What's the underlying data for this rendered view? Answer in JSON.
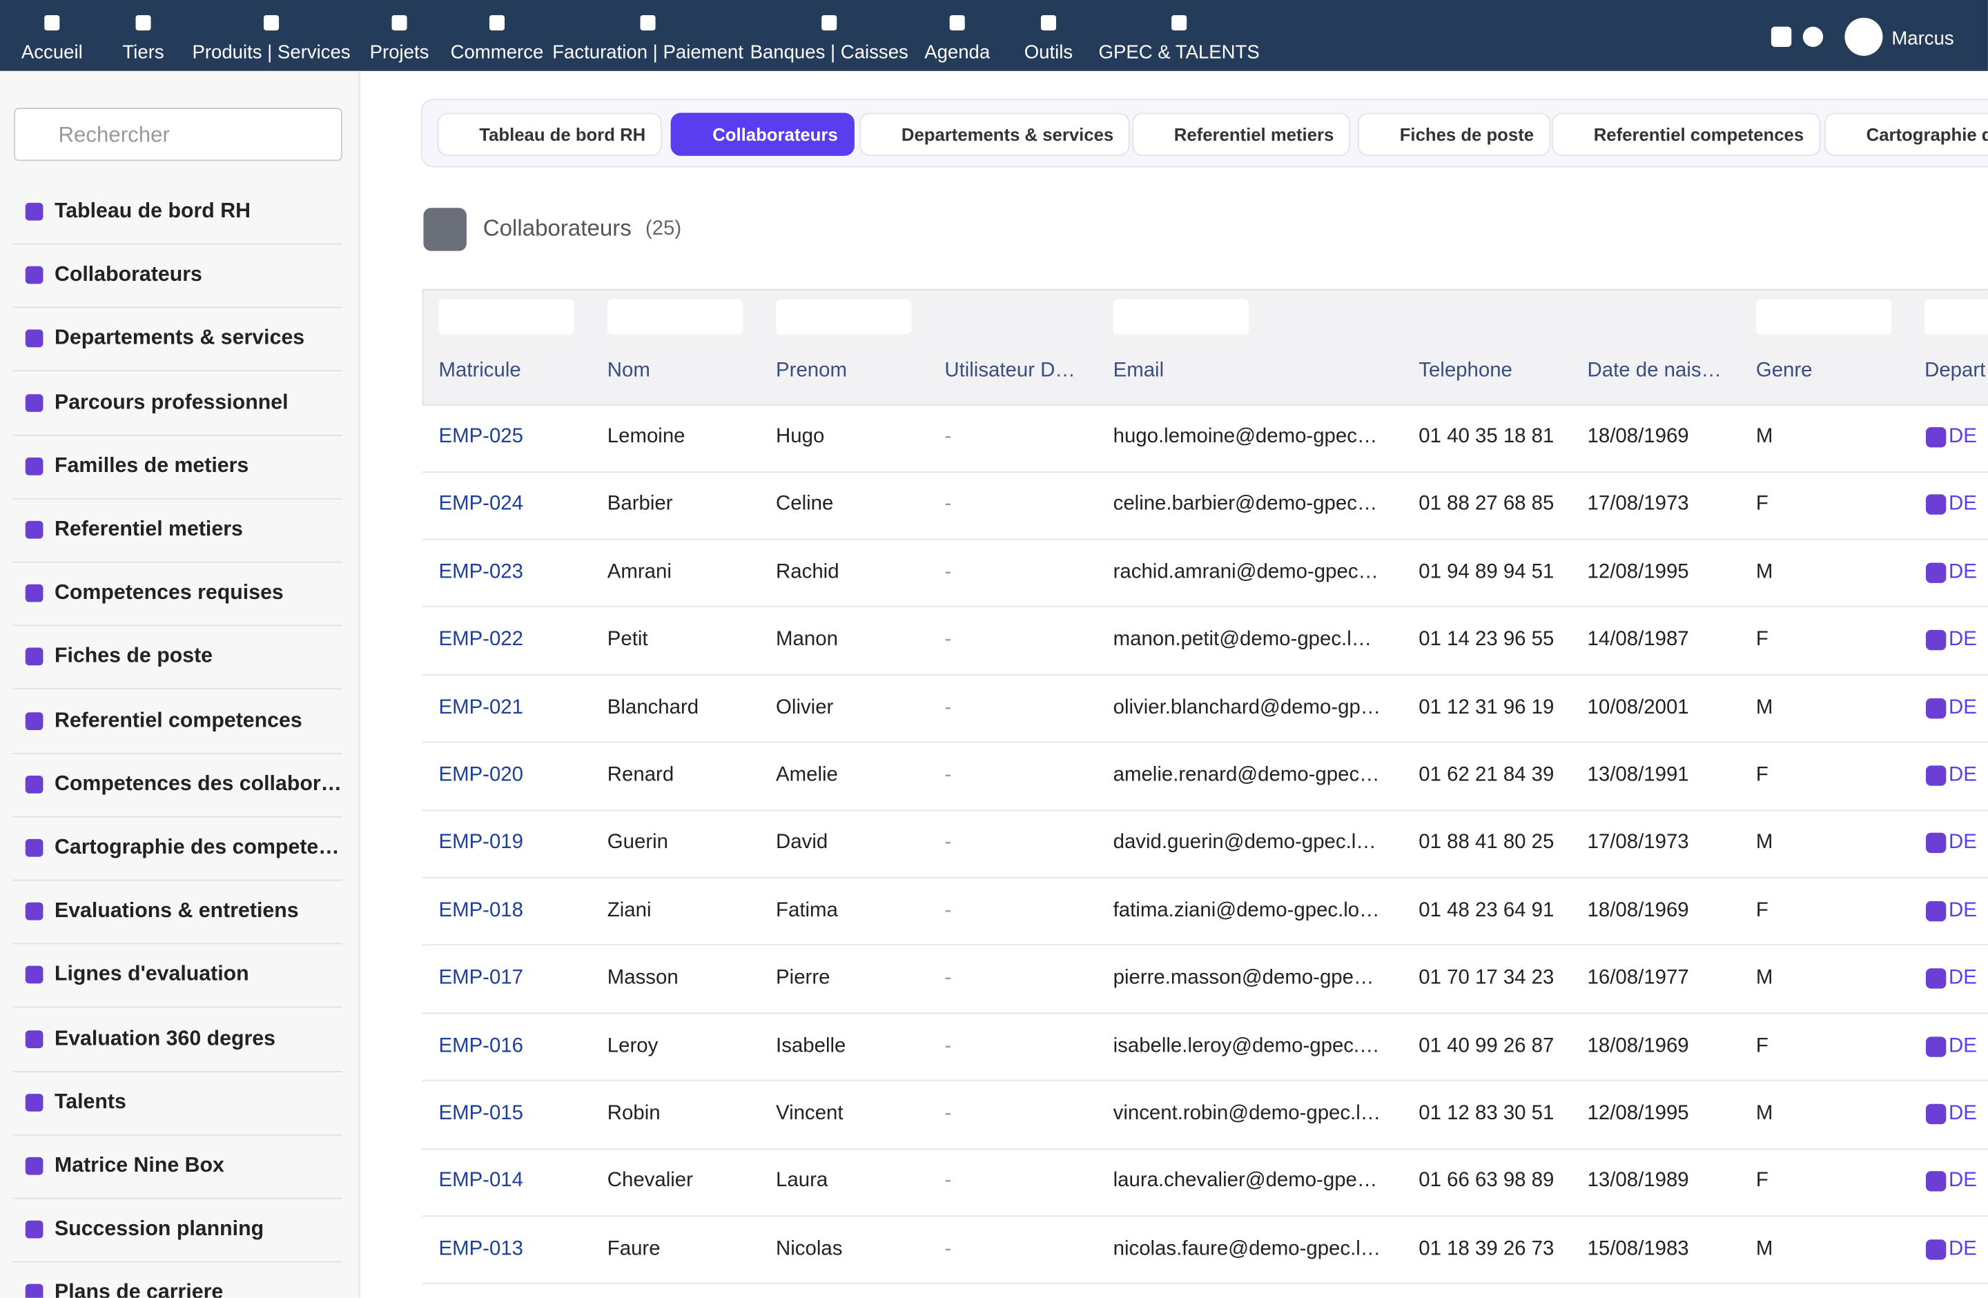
{
  "nav": {
    "items": [
      "Accueil",
      "Tiers",
      "Produits | Services",
      "Projets",
      "Commerce",
      "Facturation | Paiement",
      "Banques | Caisses",
      "Agenda",
      "Outils",
      "GPEC & TALENTS"
    ],
    "user": "Marcus"
  },
  "sidebar": {
    "search_placeholder": "Rechercher",
    "items": [
      "Tableau de bord RH",
      "Collaborateurs",
      "Departements & services",
      "Parcours professionnel",
      "Familles de metiers",
      "Referentiel metiers",
      "Competences requises",
      "Fiches de poste",
      "Referentiel competences",
      "Competences des collabor…",
      "Cartographie des compete…",
      "Evaluations & entretiens",
      "Lignes d'evaluation",
      "Evaluation 360 degres",
      "Talents",
      "Matrice Nine Box",
      "Succession planning",
      "Plans de carriere"
    ]
  },
  "tabs": [
    "Tableau de bord RH",
    "Collaborateurs",
    "Departements & services",
    "Referentiel metiers",
    "Fiches de poste",
    "Referentiel competences",
    "Cartographie d"
  ],
  "page": {
    "title": "Collaborateurs",
    "count": "(25)"
  },
  "table": {
    "headers": [
      "Matricule",
      "Nom",
      "Prenom",
      "Utilisateur D…",
      "Email",
      "Telephone",
      "Date de nais…",
      "Genre",
      "Depart"
    ],
    "rows": [
      [
        "EMP-025",
        "Lemoine",
        "Hugo",
        "-",
        "hugo.lemoine@demo-gpec…",
        "01 40 35 18 81",
        "18/08/1969",
        "M",
        "DE"
      ],
      [
        "EMP-024",
        "Barbier",
        "Celine",
        "-",
        "celine.barbier@demo-gpec…",
        "01 88 27 68 85",
        "17/08/1973",
        "F",
        "DE"
      ],
      [
        "EMP-023",
        "Amrani",
        "Rachid",
        "-",
        "rachid.amrani@demo-gpec…",
        "01 94 89 94 51",
        "12/08/1995",
        "M",
        "DE"
      ],
      [
        "EMP-022",
        "Petit",
        "Manon",
        "-",
        "manon.petit@demo-gpec.l…",
        "01 14 23 96 55",
        "14/08/1987",
        "F",
        "DE"
      ],
      [
        "EMP-021",
        "Blanchard",
        "Olivier",
        "-",
        "olivier.blanchard@demo-gp…",
        "01 12 31 96 19",
        "10/08/2001",
        "M",
        "DE"
      ],
      [
        "EMP-020",
        "Renard",
        "Amelie",
        "-",
        "amelie.renard@demo-gpec…",
        "01 62 21 84 39",
        "13/08/1991",
        "F",
        "DE"
      ],
      [
        "EMP-019",
        "Guerin",
        "David",
        "-",
        "david.guerin@demo-gpec.l…",
        "01 88 41 80 25",
        "17/08/1973",
        "M",
        "DE"
      ],
      [
        "EMP-018",
        "Ziani",
        "Fatima",
        "-",
        "fatima.ziani@demo-gpec.lo…",
        "01 48 23 64 91",
        "18/08/1969",
        "F",
        "DE"
      ],
      [
        "EMP-017",
        "Masson",
        "Pierre",
        "-",
        "pierre.masson@demo-gpe…",
        "01 70 17 34 23",
        "16/08/1977",
        "M",
        "DE"
      ],
      [
        "EMP-016",
        "Leroy",
        "Isabelle",
        "-",
        "isabelle.leroy@demo-gpec.…",
        "01 40 99 26 87",
        "18/08/1969",
        "F",
        "DE"
      ],
      [
        "EMP-015",
        "Robin",
        "Vincent",
        "-",
        "vincent.robin@demo-gpec.l…",
        "01 12 83 30 51",
        "12/08/1995",
        "M",
        "DE"
      ],
      [
        "EMP-014",
        "Chevalier",
        "Laura",
        "-",
        "laura.chevalier@demo-gpe…",
        "01 66 63 98 89",
        "13/08/1989",
        "F",
        "DE"
      ],
      [
        "EMP-013",
        "Faure",
        "Nicolas",
        "-",
        "nicolas.faure@demo-gpec.l…",
        "01 18 39 26 73",
        "15/08/1983",
        "M",
        "DE"
      ]
    ]
  }
}
